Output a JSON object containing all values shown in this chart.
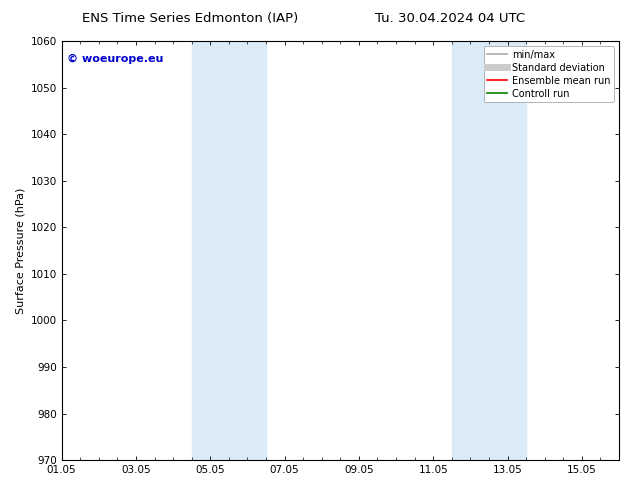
{
  "title_left": "ENS Time Series Edmonton (IAP)",
  "title_right": "Tu. 30.04.2024 04 UTC",
  "ylabel": "Surface Pressure (hPa)",
  "ylim": [
    970,
    1060
  ],
  "yticks": [
    970,
    980,
    990,
    1000,
    1010,
    1020,
    1030,
    1040,
    1050,
    1060
  ],
  "xtick_labels": [
    "01.05",
    "03.05",
    "05.05",
    "07.05",
    "09.05",
    "11.05",
    "13.05",
    "15.05"
  ],
  "xtick_positions": [
    0,
    2,
    4,
    6,
    8,
    10,
    12,
    14
  ],
  "xlim": [
    0,
    15
  ],
  "shaded_bands": [
    {
      "x_start": 3.5,
      "x_end": 5.5
    },
    {
      "x_start": 10.5,
      "x_end": 12.5
    }
  ],
  "shade_color": "#daeaf7",
  "watermark_text": "© woeurope.eu",
  "watermark_color": "#0000cc",
  "legend_entries": [
    {
      "label": "min/max",
      "color": "#aaaaaa",
      "lw": 1.2,
      "style": "solid"
    },
    {
      "label": "Standard deviation",
      "color": "#cccccc",
      "lw": 5,
      "style": "solid"
    },
    {
      "label": "Ensemble mean run",
      "color": "#ff0000",
      "lw": 1.2,
      "style": "solid"
    },
    {
      "label": "Controll run",
      "color": "#008000",
      "lw": 1.2,
      "style": "solid"
    }
  ],
  "bg_color": "#ffffff",
  "title_fontsize": 9.5,
  "axis_label_fontsize": 8,
  "tick_fontsize": 7.5,
  "legend_fontsize": 7,
  "watermark_fontsize": 8
}
